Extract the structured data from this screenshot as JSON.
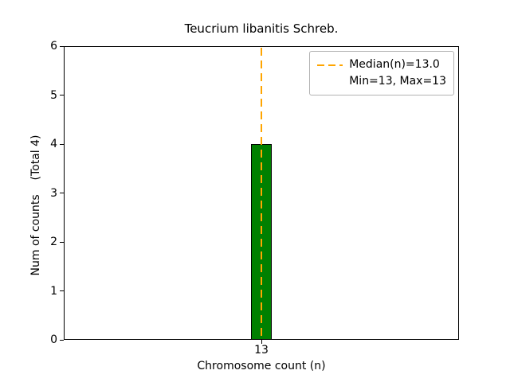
{
  "chart_data": {
    "type": "bar",
    "title": "Teucrium libanitis Schreb.",
    "xlabel": "Chromosome count (n)",
    "ylabel": "Num of counts    (Total 4)",
    "categories": [
      "13"
    ],
    "values": [
      4
    ],
    "ylim": [
      0,
      6
    ],
    "yticks": [
      0,
      1,
      2,
      3,
      4,
      5,
      6
    ],
    "grid": false,
    "total_counts": 4,
    "median": "13.0",
    "min": "13",
    "max": "13",
    "colors": {
      "bar_fill": "#008000",
      "bar_edge": "#000000",
      "median_line": "#FFA500"
    },
    "legend": {
      "position": "upper right",
      "items": [
        {
          "label": "Median(n)=13.0",
          "sample": "dashed-line"
        },
        {
          "label": "Min=13, Max=13",
          "sample": "none"
        }
      ]
    }
  }
}
